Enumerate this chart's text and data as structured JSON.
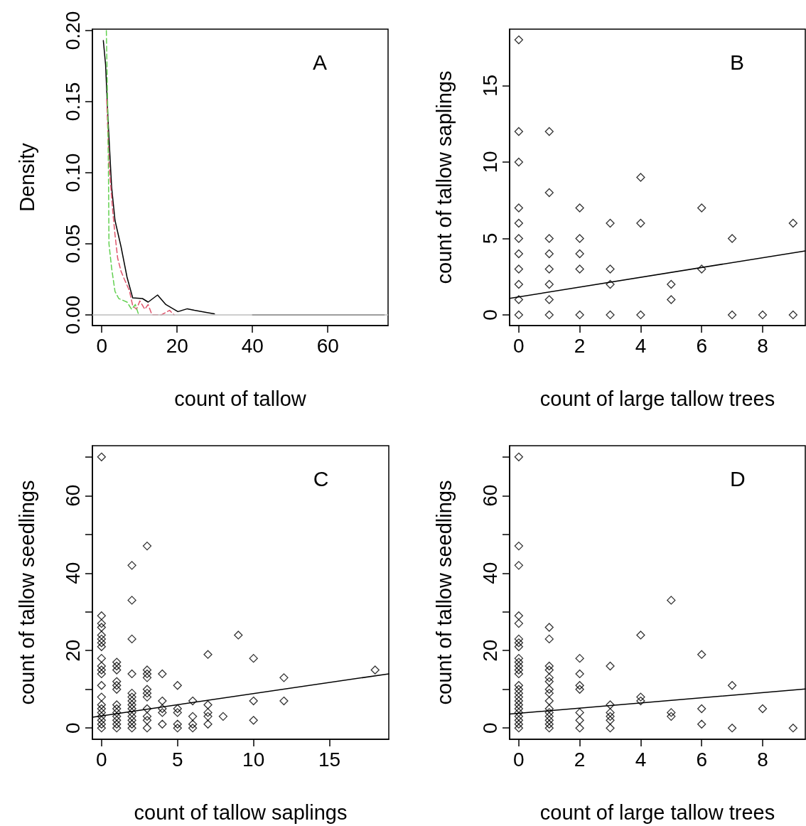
{
  "chart_data": [
    {
      "type": "line",
      "xlabel": "count of tallow",
      "ylabel": "Density",
      "annotations": [
        "A"
      ],
      "xlim": [
        -2.5,
        76
      ],
      "xticks": [
        0,
        20,
        40,
        60
      ],
      "ylim": [
        -0.0075,
        0.201
      ],
      "yticks": [
        {
          "value": 0,
          "label": "0.00"
        },
        0.05,
        {
          "value": 0.1,
          "label": "0.10"
        },
        0.15,
        {
          "value": 0.2,
          "label": "0.20"
        }
      ],
      "marker": "none",
      "ref_lines": [
        {
          "axis": "y",
          "value": 0,
          "color": "#bebebe"
        }
      ],
      "series": [
        {
          "color": "#000000",
          "line_style": "solid",
          "x": [
            0.4,
            1.0,
            1.6,
            2.6,
            3.5,
            5.1,
            6.7,
            8.2,
            10.8,
            12.3,
            14.8,
            17.0,
            20.2,
            22.7,
            24.6,
            27.7,
            29.9,
            34.7,
            40,
            75
          ],
          "values": [
            0.193,
            0.176,
            0.14,
            0.09,
            0.0665,
            0.048,
            0.0265,
            0.012,
            0.0115,
            0.009,
            0.014,
            0.0073,
            0.0023,
            0.0043,
            0.0032,
            0.0018,
            0.0007,
            null,
            0,
            0
          ]
        },
        {
          "color": "#df536b",
          "line_style": "dashed",
          "x": [
            1.3,
            1.9,
            2.9,
            3.5,
            4.2,
            5.1,
            6.0,
            7.3,
            8.2,
            9.2,
            10.1,
            11.4,
            12.3,
            13.3,
            15.8,
            18.0,
            19.2
          ],
          "values": [
            0.1515,
            0.1065,
            0.073,
            0.0565,
            0.04,
            0.0307,
            0.025,
            0.0173,
            0.0065,
            0.004,
            0.0098,
            0.004,
            0.0073,
            0.0002,
            0,
            0.0032,
            0
          ]
        },
        {
          "color": "#61d04f",
          "line_style": "dashed",
          "x": [
            1.2,
            1.6,
            1.8,
            1.9,
            2.6,
            3.5,
            4.5,
            6.7,
            7.9,
            8.9,
            9.8
          ],
          "values": [
            0.2,
            0.14,
            0.09,
            0.05,
            0.033,
            0.0165,
            0.0115,
            0.009,
            0.004,
            0.0073,
            0
          ]
        }
      ]
    },
    {
      "type": "scatter",
      "xlabel": "count of large tallow trees",
      "ylabel": "count of tallow saplings",
      "annotations": [
        "B"
      ],
      "xlim": [
        -0.3,
        9.4
      ],
      "xticks": [
        0,
        2,
        4,
        6,
        8
      ],
      "ylim": [
        -0.7,
        18.7
      ],
      "yticks": [
        0,
        5,
        10,
        15
      ],
      "marker": "diamond",
      "series": [
        {
          "color": "#000000",
          "x": [
            0,
            0,
            0,
            0,
            0,
            0,
            0,
            0,
            0,
            0,
            0,
            1,
            1,
            1,
            1,
            1,
            1,
            1,
            1,
            2,
            2,
            2,
            2,
            2,
            3,
            3,
            3,
            3,
            4,
            4,
            4,
            5,
            5,
            6,
            6,
            7,
            7,
            8,
            9,
            9
          ],
          "values": [
            18,
            12,
            10,
            7,
            6,
            5,
            4,
            3,
            2,
            1,
            0,
            12,
            8,
            5,
            4,
            3,
            2,
            1,
            0,
            7,
            5,
            4,
            3,
            0,
            6,
            3,
            2,
            0,
            9,
            6,
            0,
            2,
            1,
            7,
            3,
            5,
            0,
            0,
            6,
            0
          ]
        },
        {
          "type": "line",
          "color": "#000000",
          "marker": "none",
          "line_style": "solid",
          "x": [
            -0.3,
            9.4
          ],
          "values": [
            1.08,
            4.19
          ]
        }
      ]
    },
    {
      "type": "scatter",
      "xlabel": "count of tallow saplings",
      "ylabel": "count of tallow seedlings",
      "annotations": [
        "C"
      ],
      "xlim": [
        -0.6,
        18.9
      ],
      "xticks": [
        0,
        5,
        10,
        15
      ],
      "ylim": [
        -2.9,
        72.9
      ],
      "yticks": [
        0,
        {
          "value": 10,
          "label": null
        },
        20,
        {
          "value": 30,
          "label": null
        },
        40,
        {
          "value": 50,
          "label": null
        },
        60,
        {
          "value": 70,
          "label": null
        }
      ],
      "marker": "diamond",
      "series": [
        {
          "color": "#000000",
          "x": [
            0,
            0,
            0,
            0,
            0,
            0,
            0,
            0,
            0,
            0,
            0,
            0,
            0,
            0,
            0,
            0,
            0,
            0,
            0,
            0,
            0,
            1,
            1,
            1,
            1,
            1,
            1,
            1,
            1,
            1,
            1,
            1,
            1,
            1,
            2,
            2,
            2,
            2,
            2,
            2,
            2,
            2,
            2,
            2,
            2,
            2,
            2,
            2,
            3,
            3,
            3,
            3,
            3,
            3,
            3,
            3,
            3,
            3,
            3,
            4,
            4,
            4,
            4,
            4,
            5,
            5,
            5,
            5,
            5,
            6,
            6,
            6,
            6,
            7,
            7,
            7,
            7,
            7,
            8,
            9,
            10,
            10,
            10,
            12,
            12,
            18
          ],
          "values": [
            70,
            29,
            27,
            26,
            24,
            23,
            22,
            21,
            18,
            16,
            15,
            14,
            11,
            8,
            6,
            5,
            4,
            3,
            2,
            1,
            0,
            17,
            16,
            15,
            12,
            11,
            10,
            6,
            5,
            4,
            3,
            2,
            1,
            0,
            42,
            33,
            23,
            14,
            9,
            8,
            7,
            6,
            5,
            4,
            3,
            2,
            1,
            0,
            47,
            15,
            14,
            13,
            10,
            9,
            8,
            5,
            3,
            2,
            0,
            14,
            7,
            5,
            4,
            1,
            11,
            5,
            4,
            1,
            0,
            7,
            3,
            1,
            0,
            19,
            6,
            4,
            3,
            1,
            3,
            24,
            18,
            7,
            2,
            13,
            7,
            15
          ]
        },
        {
          "type": "line",
          "color": "#000000",
          "marker": "none",
          "line_style": "solid",
          "x": [
            -0.6,
            18.9
          ],
          "values": [
            2.8,
            14.0
          ]
        }
      ]
    },
    {
      "type": "scatter",
      "xlabel": "count of large tallow trees",
      "ylabel": "count of tallow seedlings",
      "annotations": [
        "D"
      ],
      "xlim": [
        -0.3,
        9.4
      ],
      "xticks": [
        0,
        2,
        4,
        6,
        8
      ],
      "ylim": [
        -2.9,
        72.9
      ],
      "yticks": [
        0,
        {
          "value": 10,
          "label": null
        },
        20,
        {
          "value": 30,
          "label": null
        },
        40,
        {
          "value": 50,
          "label": null
        },
        60,
        {
          "value": 70,
          "label": null
        }
      ],
      "marker": "diamond",
      "series": [
        {
          "color": "#000000",
          "x": [
            0,
            0,
            0,
            0,
            0,
            0,
            0,
            0,
            0,
            0,
            0,
            0,
            0,
            0,
            0,
            0,
            0,
            0,
            0,
            0,
            0,
            0,
            0,
            0,
            0,
            1,
            1,
            1,
            1,
            1,
            1,
            1,
            1,
            1,
            1,
            1,
            1,
            1,
            1,
            1,
            2,
            2,
            2,
            2,
            2,
            2,
            2,
            3,
            3,
            3,
            3,
            3,
            3,
            4,
            4,
            4,
            5,
            5,
            5,
            6,
            6,
            6,
            7,
            7,
            8,
            9
          ],
          "values": [
            70,
            47,
            42,
            29,
            27,
            23,
            22,
            21,
            18,
            17,
            16,
            15,
            14,
            11,
            10,
            9,
            8,
            7,
            6,
            5,
            4,
            3,
            2,
            1,
            0,
            26,
            23,
            16,
            15,
            13,
            12,
            10,
            9,
            7,
            5,
            4,
            3,
            2,
            1,
            0,
            18,
            14,
            11,
            10,
            4,
            2,
            0,
            16,
            6,
            4,
            3,
            2,
            0,
            24,
            8,
            7,
            33,
            4,
            3,
            19,
            5,
            1,
            11,
            0,
            5,
            0
          ]
        },
        {
          "type": "line",
          "color": "#000000",
          "marker": "none",
          "line_style": "solid",
          "x": [
            -0.3,
            9.4
          ],
          "values": [
            3.6,
            10.1
          ]
        }
      ]
    }
  ]
}
